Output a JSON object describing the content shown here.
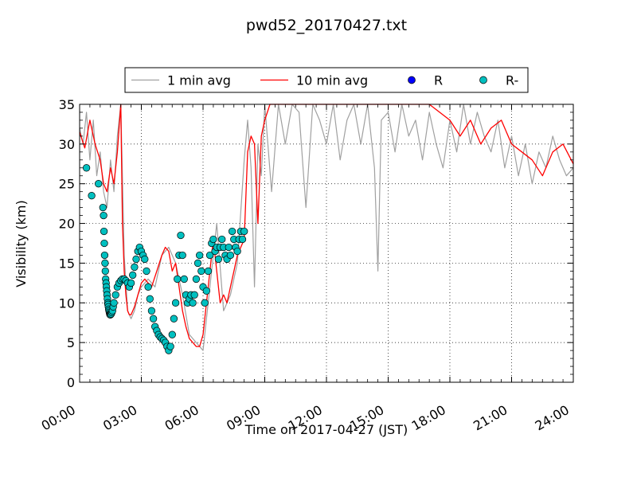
{
  "chart_data": {
    "type": "line",
    "title": "pwd52_20170427.txt",
    "xlabel": "Time on 2017-04-27 (JST)",
    "ylabel": "Visibility (km)",
    "xlim": [
      "00:00",
      "24:00"
    ],
    "ylim": [
      0,
      35
    ],
    "x_ticks": [
      "00:00",
      "03:00",
      "06:00",
      "09:00",
      "12:00",
      "15:00",
      "18:00",
      "21:00",
      "24:00"
    ],
    "y_ticks": [
      "0",
      "5",
      "10",
      "15",
      "20",
      "25",
      "30",
      "35"
    ],
    "grid": true,
    "legend_position": "top-center",
    "legend": [
      {
        "label": "1 min avg",
        "marker": "line",
        "color": "#a0a0a0"
      },
      {
        "label": "10 min avg",
        "marker": "line",
        "color": "#ff0000"
      },
      {
        "label": "R",
        "marker": "circle",
        "color": "#0000ff"
      },
      {
        "label": "R-",
        "marker": "circle",
        "color": "#00c0c0"
      }
    ],
    "series": [
      {
        "name": "10 min avg",
        "color": "#ff0000",
        "x": [
          "00:00",
          "00:15",
          "00:30",
          "00:45",
          "01:00",
          "01:10",
          "01:20",
          "01:30",
          "01:40",
          "01:50",
          "02:00",
          "02:05",
          "02:10",
          "02:15",
          "02:20",
          "02:25",
          "02:30",
          "02:40",
          "02:50",
          "03:00",
          "03:10",
          "03:20",
          "03:30",
          "03:45",
          "04:00",
          "04:10",
          "04:20",
          "04:30",
          "04:40",
          "04:50",
          "05:00",
          "05:10",
          "05:20",
          "05:30",
          "05:40",
          "05:50",
          "06:00",
          "06:10",
          "06:20",
          "06:30",
          "06:40",
          "06:50",
          "07:00",
          "07:10",
          "07:20",
          "07:30",
          "07:40",
          "07:50",
          "08:00",
          "08:10",
          "08:20",
          "08:30",
          "08:40",
          "08:50",
          "09:00",
          "09:15",
          "09:30",
          "10:00",
          "11:00",
          "12:00",
          "13:00",
          "14:00",
          "15:00",
          "16:00",
          "17:00",
          "18:00",
          "18:30",
          "19:00",
          "19:30",
          "20:00",
          "20:30",
          "21:00",
          "21:30",
          "22:00",
          "22:30",
          "23:00",
          "23:30",
          "24:00"
        ],
        "y": [
          31.5,
          29.5,
          33,
          30,
          28,
          25,
          24,
          27,
          25,
          29,
          35,
          20,
          14,
          11,
          9,
          8.5,
          8.5,
          9.5,
          11,
          12.5,
          13,
          12.5,
          12,
          14,
          16,
          17,
          16.5,
          14,
          15,
          12,
          9,
          7,
          5.5,
          5,
          4.5,
          4.5,
          6,
          10,
          14,
          18,
          14,
          10,
          11,
          10,
          12,
          14,
          16,
          17,
          18,
          29,
          31,
          30,
          20,
          31,
          33,
          35,
          35,
          35,
          35,
          35,
          35,
          35,
          35,
          35,
          35,
          33,
          31,
          33,
          30,
          32,
          33,
          30,
          29,
          28,
          26,
          29,
          30,
          27.5
        ]
      },
      {
        "name": "1 min avg",
        "color": "#a0a0a0",
        "x": [
          "00:00",
          "00:10",
          "00:20",
          "00:30",
          "00:40",
          "00:50",
          "01:00",
          "01:10",
          "01:20",
          "01:30",
          "01:40",
          "01:50",
          "02:00",
          "02:10",
          "02:20",
          "02:30",
          "02:40",
          "02:50",
          "03:00",
          "03:20",
          "03:40",
          "04:00",
          "04:20",
          "04:40",
          "05:00",
          "05:20",
          "05:40",
          "06:00",
          "06:20",
          "06:40",
          "07:00",
          "07:20",
          "07:40",
          "08:00",
          "08:10",
          "08:20",
          "08:30",
          "08:40",
          "08:50",
          "09:00",
          "09:20",
          "09:40",
          "10:00",
          "10:20",
          "10:40",
          "11:00",
          "11:20",
          "11:40",
          "12:00",
          "12:20",
          "12:40",
          "13:00",
          "13:20",
          "13:40",
          "14:00",
          "14:20",
          "14:30",
          "14:40",
          "15:00",
          "15:20",
          "15:40",
          "16:00",
          "16:20",
          "16:40",
          "17:00",
          "17:20",
          "17:40",
          "18:00",
          "18:20",
          "18:40",
          "19:00",
          "19:20",
          "19:40",
          "20:00",
          "20:20",
          "20:40",
          "21:00",
          "21:20",
          "21:40",
          "22:00",
          "22:20",
          "22:40",
          "23:00",
          "23:20",
          "23:40",
          "24:00"
        ],
        "y": [
          32,
          30,
          34,
          28,
          33,
          26,
          29,
          24,
          22,
          28,
          24,
          31,
          35,
          16,
          9,
          8,
          9,
          11,
          12,
          13,
          12,
          16,
          17,
          15,
          11,
          6,
          5,
          4,
          12,
          20,
          9,
          11,
          15,
          28,
          33,
          27,
          12,
          30,
          26,
          35,
          24,
          35,
          30,
          35,
          34,
          22,
          35,
          33,
          30,
          35,
          28,
          33,
          35,
          30,
          35,
          27,
          14,
          33,
          34,
          29,
          35,
          31,
          33,
          28,
          34,
          30,
          27,
          33,
          29,
          35,
          30,
          34,
          31,
          29,
          33,
          27,
          31,
          26,
          30,
          25,
          29,
          27,
          31,
          28,
          26,
          27
        ]
      },
      {
        "name": "R",
        "color": "#0000ff",
        "x": [],
        "y": []
      },
      {
        "name": "R-",
        "color": "#00c0c0",
        "x": [
          "00:20",
          "00:35",
          "00:55",
          "01:08",
          "01:10",
          "01:11",
          "01:12",
          "01:13",
          "01:14",
          "01:15",
          "01:16",
          "01:17",
          "01:18",
          "01:19",
          "01:20",
          "01:21",
          "01:22",
          "01:23",
          "01:24",
          "01:25",
          "01:26",
          "01:27",
          "01:28",
          "01:29",
          "01:30",
          "01:32",
          "01:34",
          "01:36",
          "01:38",
          "01:40",
          "01:45",
          "01:50",
          "01:55",
          "02:00",
          "02:05",
          "02:10",
          "02:15",
          "02:20",
          "02:25",
          "02:30",
          "02:35",
          "02:40",
          "02:45",
          "02:50",
          "02:55",
          "03:00",
          "03:05",
          "03:10",
          "03:15",
          "03:20",
          "03:25",
          "03:30",
          "03:35",
          "03:40",
          "03:45",
          "03:50",
          "03:55",
          "04:00",
          "04:05",
          "04:10",
          "04:15",
          "04:20",
          "04:25",
          "04:30",
          "04:35",
          "04:40",
          "04:45",
          "04:50",
          "04:55",
          "05:00",
          "05:05",
          "05:10",
          "05:15",
          "05:20",
          "05:25",
          "05:30",
          "05:35",
          "05:40",
          "05:45",
          "05:50",
          "05:55",
          "06:00",
          "06:05",
          "06:10",
          "06:15",
          "06:20",
          "06:25",
          "06:30",
          "06:35",
          "06:40",
          "06:45",
          "06:50",
          "06:55",
          "07:00",
          "07:05",
          "07:10",
          "07:15",
          "07:20",
          "07:25",
          "07:30",
          "07:35",
          "07:40",
          "07:45",
          "07:50",
          "07:55",
          "08:00"
        ],
        "y": [
          27,
          23.5,
          25,
          22,
          21,
          19,
          17.5,
          16,
          15,
          14,
          13,
          12.5,
          12,
          11.5,
          11,
          10.5,
          10,
          9.8,
          9.5,
          9.2,
          9,
          8.8,
          8.6,
          8.5,
          8.5,
          8.6,
          8.8,
          9,
          9.5,
          10,
          11,
          12,
          12.5,
          12.8,
          13,
          13,
          12.8,
          12.5,
          12,
          12.5,
          13.5,
          14.5,
          15.5,
          16.5,
          17,
          16.5,
          16,
          15.5,
          14,
          12,
          10.5,
          9,
          8,
          7,
          6.5,
          6,
          5.7,
          5.5,
          5.3,
          5,
          4.5,
          4,
          4.5,
          6,
          8,
          10,
          13,
          16,
          18.5,
          16,
          13,
          11,
          10,
          10.5,
          11,
          10,
          11,
          13,
          15,
          16,
          14,
          12,
          10,
          11.5,
          14,
          16,
          17.5,
          18,
          16.5,
          17,
          15.5,
          17,
          18,
          17,
          16,
          15.5,
          17,
          16,
          19,
          18,
          17,
          16.5,
          18,
          19,
          18,
          19
        ]
      }
    ]
  }
}
